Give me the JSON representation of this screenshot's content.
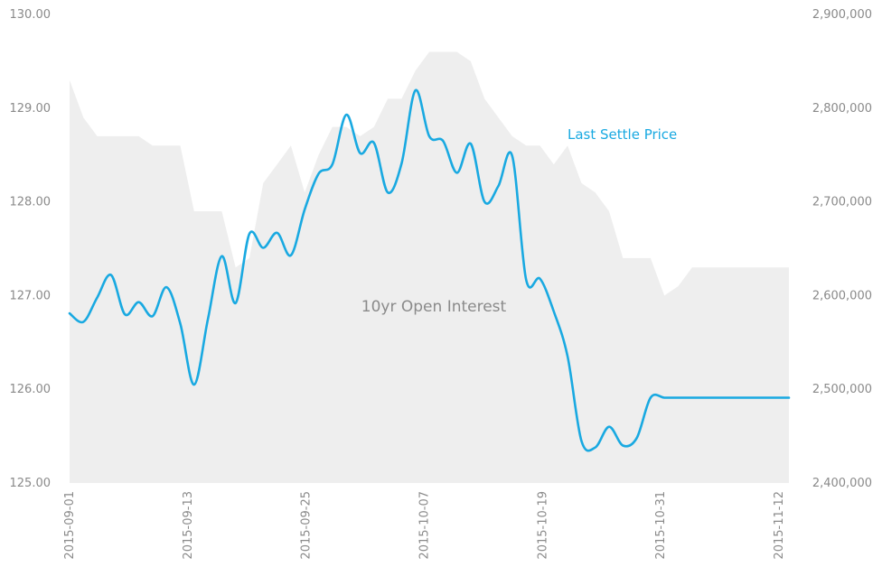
{
  "chart_data": {
    "type": "line",
    "x": [
      "2015-09-01",
      "2015-09-02",
      "2015-09-03",
      "2015-09-04",
      "2015-09-08",
      "2015-09-09",
      "2015-09-10",
      "2015-09-11",
      "2015-09-14",
      "2015-09-15",
      "2015-09-16",
      "2015-09-17",
      "2015-09-18",
      "2015-09-21",
      "2015-09-22",
      "2015-09-23",
      "2015-09-24",
      "2015-09-25",
      "2015-09-28",
      "2015-09-29",
      "2015-09-30",
      "2015-10-01",
      "2015-10-02",
      "2015-10-05",
      "2015-10-06",
      "2015-10-07",
      "2015-10-08",
      "2015-10-09",
      "2015-10-12",
      "2015-10-13",
      "2015-10-14",
      "2015-10-15",
      "2015-10-16",
      "2015-10-19",
      "2015-10-20",
      "2015-10-21",
      "2015-10-22",
      "2015-10-23",
      "2015-10-26",
      "2015-10-27",
      "2015-10-28",
      "2015-10-29",
      "2015-10-30",
      "2015-11-02",
      "2015-11-03",
      "2015-11-04",
      "2015-11-05",
      "2015-11-06",
      "2015-11-09",
      "2015-11-10",
      "2015-11-11",
      "2015-11-12",
      "2015-11-13"
    ],
    "x_ticks": [
      "2015-09-01",
      "2015-09-13",
      "2015-09-25",
      "2015-10-07",
      "2015-10-19",
      "2015-10-31",
      "2015-11-12"
    ],
    "series": [
      {
        "name": "Last Settle Price",
        "axis": "left",
        "color": "#19a9e1",
        "style": "line",
        "values": [
          126.81,
          126.72,
          126.98,
          127.22,
          126.8,
          126.93,
          126.78,
          127.09,
          126.7,
          126.05,
          126.75,
          127.42,
          126.92,
          127.66,
          127.51,
          127.67,
          127.43,
          127.92,
          128.3,
          128.4,
          128.93,
          128.52,
          128.63,
          128.1,
          128.41,
          129.19,
          128.7,
          128.65,
          128.31,
          128.62,
          128.0,
          128.17,
          128.49,
          127.17,
          127.18,
          126.83,
          126.35,
          125.45,
          125.38,
          125.6,
          125.4,
          125.48,
          125.91,
          125.91,
          125.91,
          125.91,
          125.91,
          125.91,
          125.91,
          125.91,
          125.91,
          125.91,
          125.91
        ],
        "annotation": "Last Settle Price"
      },
      {
        "name": "10yr Open Interest",
        "axis": "right",
        "color": "#eeeeee",
        "style": "area",
        "values": [
          2830000,
          2790000,
          2770000,
          2770000,
          2770000,
          2770000,
          2760000,
          2760000,
          2760000,
          2690000,
          2690000,
          2690000,
          2630000,
          2640000,
          2720000,
          2740000,
          2760000,
          2710000,
          2750000,
          2780000,
          2780000,
          2770000,
          2780000,
          2810000,
          2810000,
          2840000,
          2860000,
          2860000,
          2860000,
          2850000,
          2810000,
          2790000,
          2770000,
          2760000,
          2760000,
          2740000,
          2760000,
          2720000,
          2710000,
          2690000,
          2640000,
          2640000,
          2640000,
          2600000,
          2610000,
          2630000,
          2630000,
          2630000,
          2630000,
          2630000,
          2630000,
          2630000,
          2630000
        ],
        "annotation": "10yr Open Interest"
      }
    ],
    "y_left": {
      "ylim": [
        125.0,
        130.0
      ],
      "ticks": [
        "125.00",
        "126.00",
        "127.00",
        "128.00",
        "129.00",
        "130.00"
      ]
    },
    "y_right": {
      "ylim": [
        2400000,
        2900000
      ],
      "ticks": [
        "2,400,000",
        "2,500,000",
        "2,600,000",
        "2,700,000",
        "2,800,000",
        "2,900,000"
      ]
    },
    "grid": false,
    "title": "",
    "xlabel": "",
    "ylabel": ""
  }
}
